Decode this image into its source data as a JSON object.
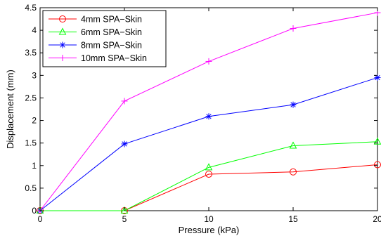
{
  "chart_data": {
    "type": "line",
    "title": "",
    "xlabel": "Pressure (kPa)",
    "ylabel": "Displacement (mm)",
    "x": [
      0,
      5,
      10,
      15,
      20
    ],
    "xlim": [
      0,
      20
    ],
    "ylim": [
      0,
      4.5
    ],
    "xticks": [
      "0",
      "5",
      "10",
      "15",
      "20"
    ],
    "yticks": [
      "0",
      "0.5",
      "1",
      "1.5",
      "2",
      "2.5",
      "3",
      "3.5",
      "4",
      "4.5"
    ],
    "grid": false,
    "legend_position": "top-left",
    "series": [
      {
        "name": "4mm SPA−Skin",
        "values": [
          0,
          0,
          0.81,
          0.86,
          1.02
        ],
        "color": "#ff0000",
        "marker": "circle"
      },
      {
        "name": "6mm SPA−Skin",
        "values": [
          0,
          0,
          0.96,
          1.44,
          1.53
        ],
        "color": "#00ff00",
        "marker": "triangle"
      },
      {
        "name": "8mm SPA−Skin",
        "values": [
          0,
          1.48,
          2.09,
          2.35,
          2.95
        ],
        "color": "#0000ff",
        "marker": "asterisk"
      },
      {
        "name": "10mm SPA−Skin",
        "values": [
          0,
          2.43,
          3.31,
          4.04,
          4.39
        ],
        "color": "#ff00ff",
        "marker": "plus"
      }
    ]
  }
}
